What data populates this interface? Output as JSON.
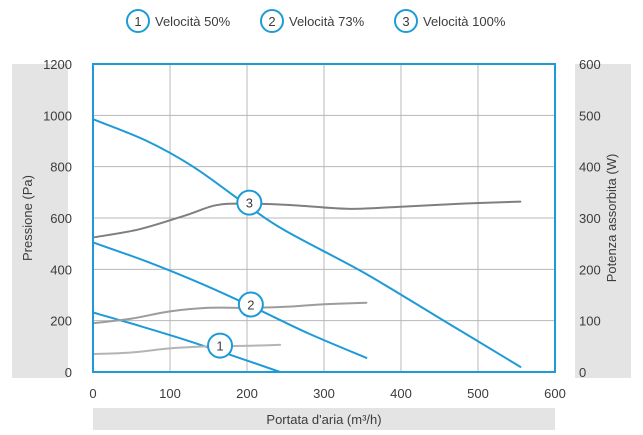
{
  "chart_data": {
    "type": "line",
    "legend": {
      "placement": "top-center",
      "items": [
        {
          "marker": "1",
          "label": "Velocità 50%"
        },
        {
          "marker": "2",
          "label": "Velocità 73%"
        },
        {
          "marker": "3",
          "label": "Velocità 100%"
        }
      ]
    },
    "xlabel": "Portata d'aria (m³/h)",
    "ylabel_left": "Pressione (Pa)",
    "ylabel_right": "Potenza assorbita (W)",
    "xlim": [
      0,
      600
    ],
    "ylim_left": [
      0,
      1200
    ],
    "ylim_right": [
      0,
      600
    ],
    "x_ticks": [
      0,
      100,
      200,
      300,
      400,
      500,
      600
    ],
    "y_ticks_left": [
      0,
      200,
      400,
      600,
      800,
      1000,
      1200
    ],
    "y_ticks_right": [
      0,
      100,
      200,
      300,
      400,
      500,
      600
    ],
    "grid": true,
    "colors": {
      "frame": "#1e9bd7",
      "pressure": "#1e9bd7",
      "power_50": "#b4b4b4",
      "power_73": "#9c9c9c",
      "power_100": "#7f7f7f",
      "grid": "#b8b8b8",
      "label_band": "#e4e4e4",
      "text": "#3c3c3c"
    },
    "series": [
      {
        "marker": "1",
        "axis": "left",
        "kind": "pressure",
        "x": [
          0,
          60,
          120,
          180,
          243
        ],
        "y": [
          232,
          180,
          125,
          65,
          0
        ]
      },
      {
        "marker": "2",
        "axis": "left",
        "kind": "pressure",
        "x": [
          0,
          70,
          140,
          210,
          280,
          355
        ],
        "y": [
          505,
          430,
          345,
          250,
          150,
          55
        ]
      },
      {
        "marker": "3",
        "axis": "left",
        "kind": "pressure",
        "x": [
          0,
          70,
          130,
          200,
          250,
          350,
          450,
          555
        ],
        "y": [
          985,
          900,
          800,
          650,
          550,
          390,
          210,
          20
        ]
      },
      {
        "marker": "1",
        "axis": "right",
        "kind": "power",
        "x": [
          0,
          50,
          100,
          150,
          200,
          243
        ],
        "y": [
          35,
          38,
          46,
          50,
          51,
          53
        ]
      },
      {
        "marker": "2",
        "axis": "right",
        "kind": "power",
        "x": [
          0,
          50,
          100,
          150,
          200,
          250,
          300,
          355
        ],
        "y": [
          95,
          104,
          118,
          125,
          125,
          127,
          132,
          135
        ]
      },
      {
        "marker": "3",
        "axis": "right",
        "kind": "power",
        "x": [
          0,
          60,
          120,
          160,
          200,
          260,
          330,
          400,
          480,
          555
        ],
        "y": [
          262,
          278,
          305,
          325,
          328,
          325,
          318,
          322,
          328,
          332
        ]
      }
    ],
    "curve_markers": [
      {
        "label": "1",
        "x": 165,
        "y": 103
      },
      {
        "label": "2",
        "x": 205,
        "y": 263
      },
      {
        "label": "3",
        "x": 203,
        "y": 660
      }
    ]
  }
}
